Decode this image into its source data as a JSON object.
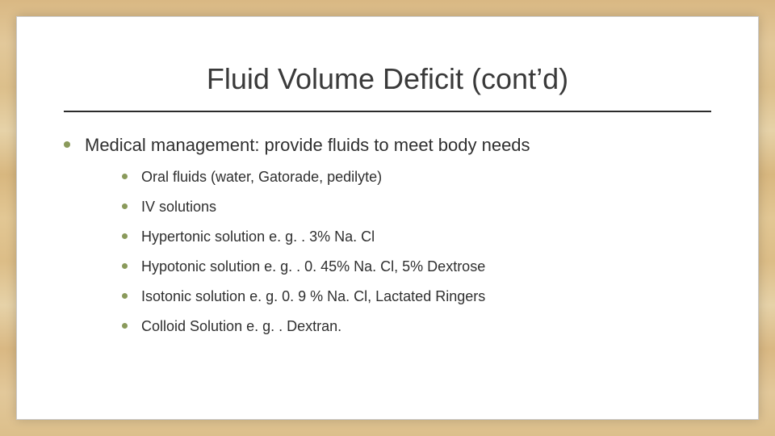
{
  "colors": {
    "bullet": "#8a9a5b",
    "text": "#2f2f2f",
    "title": "#3a3a3a",
    "rule": "#2b2b2b",
    "slide_bg": "#ffffff",
    "slide_border": "#c9c9c9"
  },
  "typography": {
    "title_fontsize": 36,
    "top_fontsize": 22,
    "sub_fontsize": 18,
    "font_family": "Arial"
  },
  "slide": {
    "title": "Fluid Volume Deficit (cont’d)",
    "top_item": "Medical management: provide fluids to meet body needs",
    "sub_items": [
      "Oral fluids (water, Gatorade, pedilyte)",
      "IV solutions",
      "Hypertonic solution e. g. . 3% Na. Cl",
      "Hypotonic solution e. g. . 0. 45% Na. Cl, 5% Dextrose",
      "Isotonic solution e. g. 0. 9 % Na. Cl, Lactated Ringers",
      "Colloid Solution e. g. . Dextran."
    ]
  }
}
